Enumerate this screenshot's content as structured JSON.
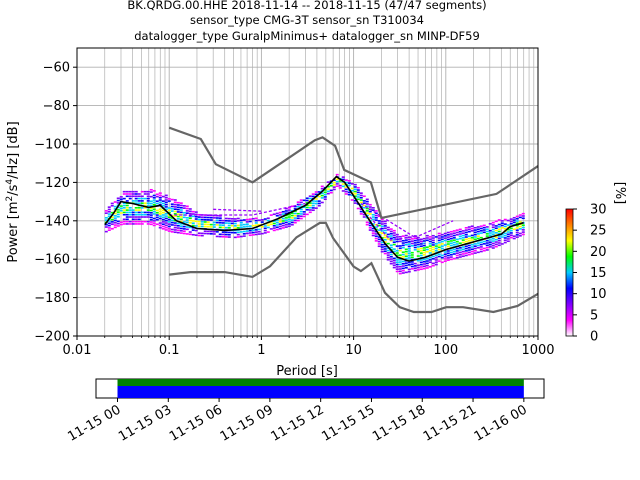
{
  "title_lines": [
    "BK.QRDG.00.HHE   2018-11-14 -- 2018-11-15  (47/47 segments)",
    "sensor_type CMG-3T sensor_sn T310034",
    "datalogger_type GuralpMinimus+ datalogger_sn MINP-DF59"
  ],
  "chart_data": [
    {
      "type": "heatmap",
      "xlabel": "Period [s]",
      "ylabel_parts": [
        "Power [m",
        "2",
        "/s",
        "4",
        "/Hz] [dB]"
      ],
      "x_scale": "log",
      "xlim": [
        0.01,
        1000
      ],
      "ylim": [
        -200,
        -50
      ],
      "x_ticks": [
        {
          "v": 0.01,
          "label": "0.01"
        },
        {
          "v": 0.1,
          "label": "0.1"
        },
        {
          "v": 1,
          "label": "1"
        },
        {
          "v": 10,
          "label": "10"
        },
        {
          "v": 100,
          "label": "100"
        },
        {
          "v": 1000,
          "label": "1000"
        }
      ],
      "y_ticks": [
        -60,
        -80,
        -100,
        -120,
        -140,
        -160,
        -180,
        -200
      ],
      "grid": true,
      "colorbar": {
        "label": "[%]",
        "range": [
          0,
          30
        ],
        "ticks": [
          0,
          5,
          10,
          15,
          20,
          25,
          30
        ],
        "colors": [
          "#ffffff",
          "#ff00ff",
          "#7f00ff",
          "#0000ff",
          "#00ccff",
          "#00ff00",
          "#ffff00",
          "#ff8000",
          "#ff0000"
        ]
      },
      "nhnm": [
        {
          "period": 0.1,
          "power": -91.5
        },
        {
          "period": 0.22,
          "power": -97.4
        },
        {
          "period": 0.32,
          "power": -110.5
        },
        {
          "period": 0.8,
          "power": -120
        },
        {
          "period": 3.8,
          "power": -98
        },
        {
          "period": 4.6,
          "power": -96.5
        },
        {
          "period": 6.3,
          "power": -101
        },
        {
          "period": 7.9,
          "power": -113.5
        },
        {
          "period": 15.4,
          "power": -120
        },
        {
          "period": 20,
          "power": -138.5
        },
        {
          "period": 354.8,
          "power": -126
        },
        {
          "period": 1000,
          "power": -111.5
        }
      ],
      "nlnm": [
        {
          "period": 0.1,
          "power": -168
        },
        {
          "period": 0.17,
          "power": -166.7
        },
        {
          "period": 0.4,
          "power": -166.7
        },
        {
          "period": 0.8,
          "power": -169.2
        },
        {
          "period": 1.24,
          "power": -163.7
        },
        {
          "period": 2.4,
          "power": -148.6
        },
        {
          "period": 4.3,
          "power": -141.1
        },
        {
          "period": 5,
          "power": -141.1
        },
        {
          "period": 6,
          "power": -149
        },
        {
          "period": 10,
          "power": -163.8
        },
        {
          "period": 12,
          "power": -166.2
        },
        {
          "period": 15.6,
          "power": -162.1
        },
        {
          "period": 21.9,
          "power": -177.5
        },
        {
          "period": 31.6,
          "power": -185
        },
        {
          "period": 45,
          "power": -187.5
        },
        {
          "period": 70,
          "power": -187.5
        },
        {
          "period": 101,
          "power": -185
        },
        {
          "period": 154,
          "power": -185
        },
        {
          "period": 328,
          "power": -187.5
        },
        {
          "period": 600,
          "power": -184.4
        },
        {
          "period": 1000,
          "power": -178
        }
      ],
      "median": [
        {
          "period": 0.02,
          "power": -142
        },
        {
          "period": 0.025,
          "power": -136
        },
        {
          "period": 0.03,
          "power": -130
        },
        {
          "period": 0.04,
          "power": -131
        },
        {
          "period": 0.06,
          "power": -133
        },
        {
          "period": 0.08,
          "power": -132
        },
        {
          "period": 0.12,
          "power": -140
        },
        {
          "period": 0.2,
          "power": -144
        },
        {
          "period": 0.4,
          "power": -145
        },
        {
          "period": 0.8,
          "power": -144
        },
        {
          "period": 1.5,
          "power": -139
        },
        {
          "period": 3,
          "power": -132
        },
        {
          "period": 4.5,
          "power": -125
        },
        {
          "period": 6.5,
          "power": -117
        },
        {
          "period": 8,
          "power": -120
        },
        {
          "period": 10,
          "power": -127
        },
        {
          "period": 15,
          "power": -140
        },
        {
          "period": 22,
          "power": -152
        },
        {
          "period": 30,
          "power": -159
        },
        {
          "period": 40,
          "power": -161
        },
        {
          "period": 60,
          "power": -159
        },
        {
          "period": 100,
          "power": -155
        },
        {
          "period": 200,
          "power": -151
        },
        {
          "period": 400,
          "power": -147
        },
        {
          "period": 500,
          "power": -143
        },
        {
          "period": 700,
          "power": -141
        }
      ],
      "spread_bands": [
        {
          "period": 0.02,
          "lo": -146,
          "hi": -135
        },
        {
          "period": 0.03,
          "lo": -142,
          "hi": -125
        },
        {
          "period": 0.06,
          "lo": -142,
          "hi": -124
        },
        {
          "period": 0.1,
          "lo": -146,
          "hi": -128
        },
        {
          "period": 0.2,
          "lo": -148,
          "hi": -136
        },
        {
          "period": 0.5,
          "lo": -149,
          "hi": -139
        },
        {
          "period": 1,
          "lo": -147,
          "hi": -139
        },
        {
          "period": 2,
          "lo": -143,
          "hi": -133
        },
        {
          "period": 4,
          "lo": -133,
          "hi": -124
        },
        {
          "period": 6.5,
          "lo": -122,
          "hi": -116
        },
        {
          "period": 10,
          "lo": -131,
          "hi": -121
        },
        {
          "period": 20,
          "lo": -157,
          "hi": -139
        },
        {
          "period": 30,
          "lo": -168,
          "hi": -148
        },
        {
          "period": 60,
          "lo": -165,
          "hi": -148
        },
        {
          "period": 100,
          "lo": -161,
          "hi": -146
        },
        {
          "period": 300,
          "lo": -155,
          "hi": -141
        },
        {
          "period": 700,
          "lo": -147,
          "hi": -136
        }
      ],
      "outlier_lines": [
        [
          {
            "period": 0.1,
            "power": -137
          },
          {
            "period": 0.8,
            "power": -137
          },
          {
            "period": 3,
            "power": -131
          }
        ],
        [
          {
            "period": 12,
            "power": -131
          },
          {
            "period": 30,
            "power": -143
          },
          {
            "period": 60,
            "power": -152
          }
        ],
        [
          {
            "period": 15,
            "power": -138
          },
          {
            "period": 25,
            "power": -150
          },
          {
            "period": 50,
            "power": -148
          },
          {
            "period": 120,
            "power": -140
          }
        ],
        [
          {
            "period": 0.3,
            "power": -134
          },
          {
            "period": 1,
            "power": -135
          }
        ]
      ]
    },
    {
      "type": "timeline",
      "start_fraction": 0.048,
      "end_fraction": 0.955,
      "colors": [
        "#008000",
        "#0000ff"
      ],
      "tick_labels": [
        "11-15 00",
        "11-15 03",
        "11-15 06",
        "11-15 09",
        "11-15 12",
        "11-15 15",
        "11-15 18",
        "11-15 21",
        "11-16 00"
      ]
    }
  ]
}
